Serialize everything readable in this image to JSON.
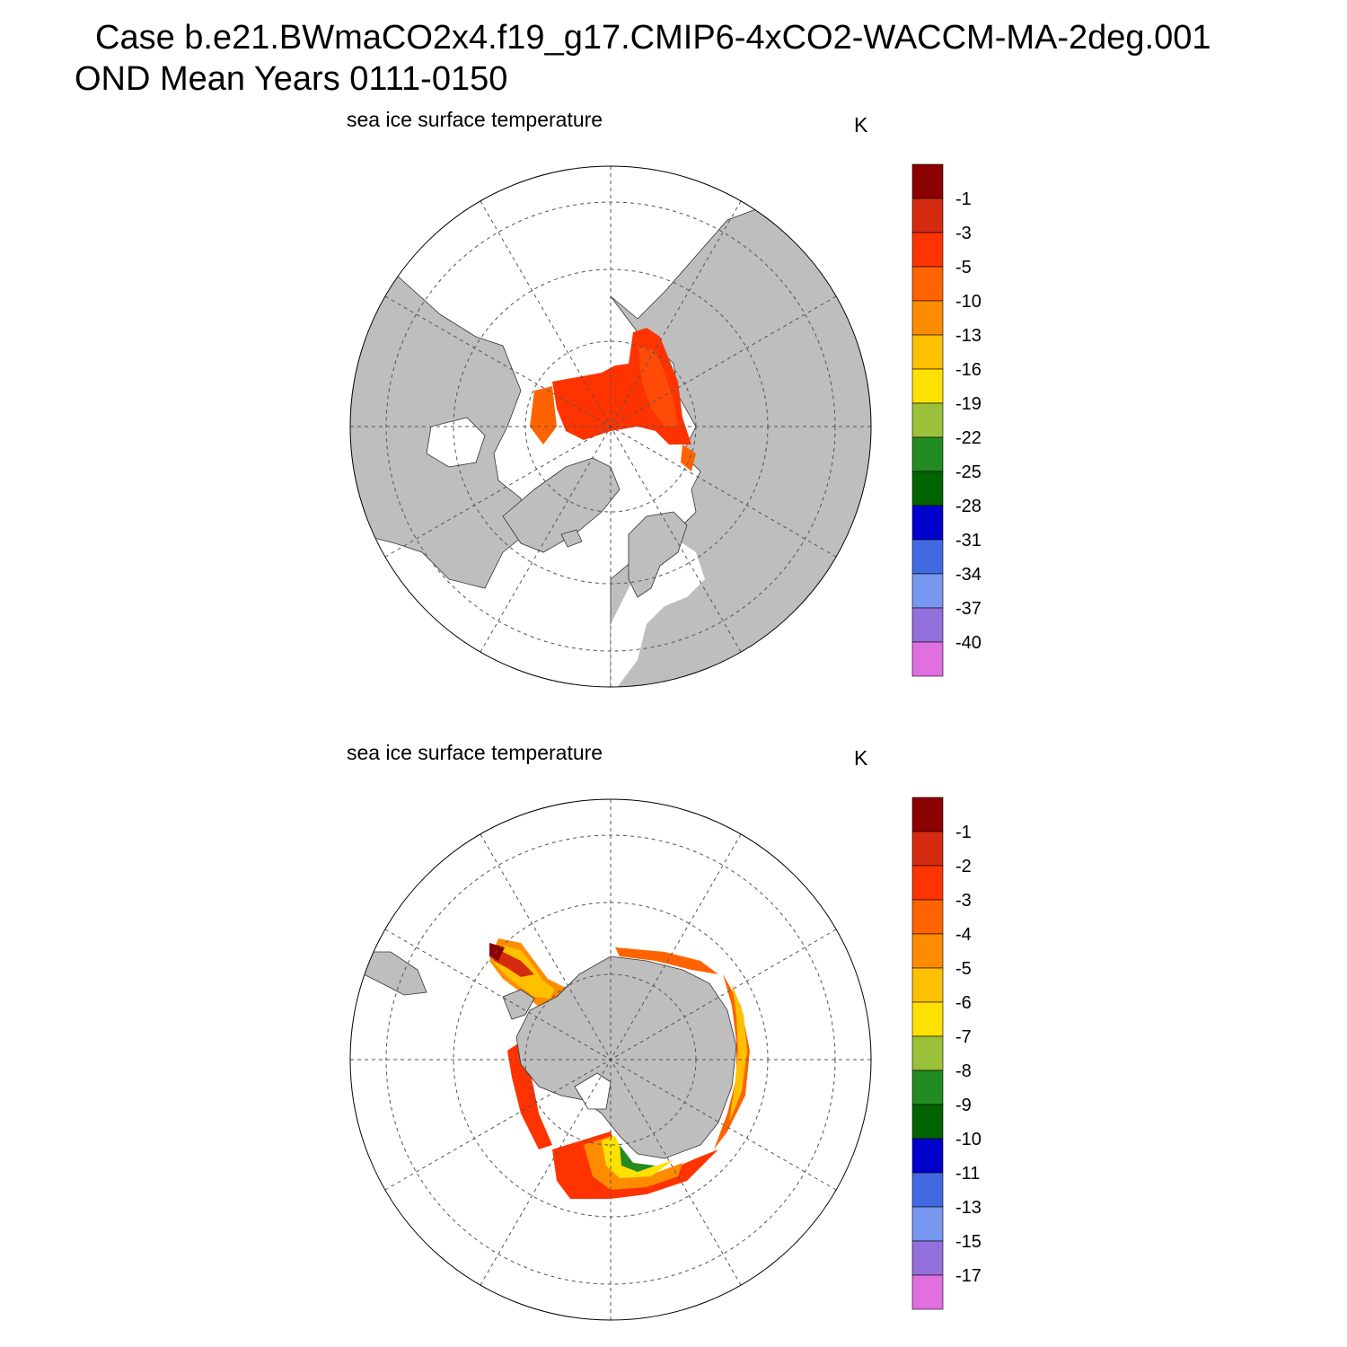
{
  "title": {
    "line1": "Case b.e21.BWmaCO2x4.f19_g17.CMIP6-4xCO2-WACCM-MA-2deg.001",
    "line2": "OND Mean   Years 0111-0150"
  },
  "colors": {
    "land": "#bebebe",
    "ocean": "#ffffff",
    "grid": "#555555"
  },
  "north": {
    "label": "sea ice surface temperature",
    "units": "K",
    "colorbar": {
      "labels": [
        "-1",
        "-3",
        "-5",
        "-10",
        "-13",
        "-16",
        "-19",
        "-22",
        "-25",
        "-28",
        "-31",
        "-34",
        "-37",
        "-40"
      ],
      "colors": [
        "#8b0000",
        "#d42a10",
        "#ff3300",
        "#ff6300",
        "#ff8c00",
        "#ffc000",
        "#ffe000",
        "#9bc03a",
        "#228b22",
        "#006400",
        "#0000cd",
        "#4169e1",
        "#7898f0",
        "#9370db",
        "#e070e0"
      ]
    }
  },
  "south": {
    "label": "sea ice surface temperature",
    "units": "K",
    "colorbar": {
      "labels": [
        "-1",
        "-2",
        "-3",
        "-4",
        "-5",
        "-6",
        "-7",
        "-8",
        "-9",
        "-10",
        "-11",
        "-13",
        "-15",
        "-17"
      ],
      "colors": [
        "#8b0000",
        "#d42a10",
        "#ff3300",
        "#ff6300",
        "#ff8c00",
        "#ffc000",
        "#ffe000",
        "#9bc03a",
        "#228b22",
        "#006400",
        "#0000cd",
        "#4169e1",
        "#7898f0",
        "#9370db",
        "#e070e0"
      ]
    }
  }
}
